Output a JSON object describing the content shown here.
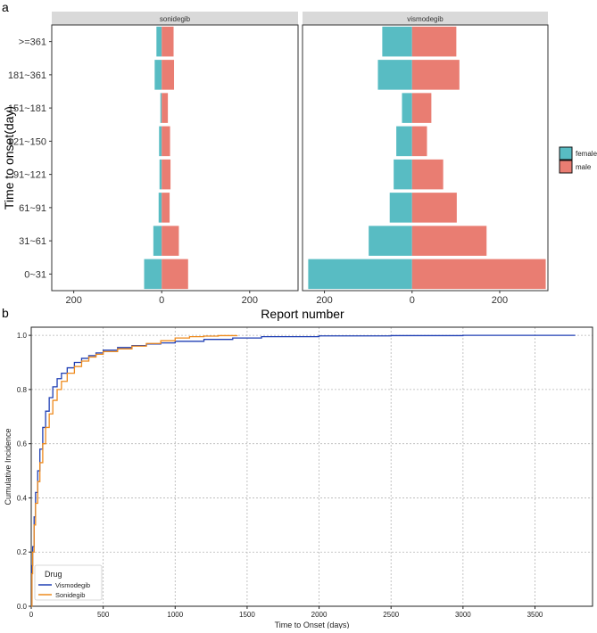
{
  "panel_labels": {
    "a": "a",
    "b": "b"
  },
  "colors": {
    "female": "#58bcc3",
    "male": "#e97d72",
    "strip_bg": "#d9d9d9",
    "vismodegib_line": "#1f3fb4",
    "sonidegib_line": "#ee8a1c",
    "grid": "#b5b5b5"
  },
  "chart_data": [
    {
      "type": "bar",
      "subtype": "population-pyramid",
      "ylabel": "Time to onset(day)",
      "xlabel": "Report number",
      "categories": [
        ">=361",
        "181~361",
        "151~181",
        "121~150",
        "91~121",
        "61~91",
        "31~61",
        "0~31"
      ],
      "xlim": [
        -250,
        310
      ],
      "xticks": [
        -200,
        0,
        200
      ],
      "xtick_labels": [
        "200",
        "0",
        "200"
      ],
      "legend": {
        "position": "right",
        "entries": [
          "female",
          "male"
        ]
      },
      "facets": [
        {
          "name": "sonidegib",
          "series": [
            {
              "name": "female",
              "values": [
                -12,
                -16,
                -3,
                -6,
                -5,
                -7,
                -19,
                -40
              ]
            },
            {
              "name": "male",
              "values": [
                27,
                28,
                14,
                19,
                20,
                18,
                39,
                60
              ]
            }
          ]
        },
        {
          "name": "vismodegib",
          "series": [
            {
              "name": "female",
              "values": [
                -68,
                -78,
                -23,
                -36,
                -42,
                -51,
                -99,
                -237
              ]
            },
            {
              "name": "male",
              "values": [
                101,
                108,
                44,
                34,
                71,
                102,
                170,
                305
              ]
            }
          ]
        }
      ]
    },
    {
      "type": "line",
      "subtype": "step",
      "xlabel": "Time to Onset (days)",
      "ylabel": "Cumulative Incidence",
      "xlim": [
        0,
        3900
      ],
      "ylim": [
        0,
        1.03
      ],
      "xticks": [
        0,
        500,
        1000,
        1500,
        2000,
        2500,
        3000,
        3500
      ],
      "yticks": [
        0.0,
        0.2,
        0.4,
        0.6,
        0.8,
        1.0
      ],
      "ytick_labels": [
        "0.0",
        "0.2",
        "0.4",
        "0.6",
        "0.8",
        "1.0"
      ],
      "grid": true,
      "legend": {
        "position": "bottom-left",
        "title": "Drug",
        "entries": [
          "Vismodegib",
          "Sonidegib"
        ]
      },
      "series": [
        {
          "name": "Vismodegib",
          "x": [
            0,
            5,
            10,
            20,
            30,
            45,
            60,
            80,
            100,
            125,
            150,
            180,
            210,
            250,
            300,
            350,
            400,
            450,
            500,
            600,
            700,
            800,
            900,
            1000,
            1200,
            1400,
            1600,
            2000,
            2500,
            3000,
            3500,
            3780
          ],
          "y": [
            0.0,
            0.15,
            0.22,
            0.33,
            0.42,
            0.5,
            0.58,
            0.66,
            0.72,
            0.77,
            0.81,
            0.84,
            0.86,
            0.88,
            0.9,
            0.915,
            0.925,
            0.935,
            0.945,
            0.955,
            0.962,
            0.968,
            0.972,
            0.978,
            0.985,
            0.99,
            0.995,
            0.998,
            0.999,
            1.0,
            1.0,
            1.0
          ]
        },
        {
          "name": "Sonidegib",
          "x": [
            0,
            5,
            10,
            20,
            30,
            45,
            60,
            80,
            100,
            125,
            150,
            180,
            210,
            250,
            300,
            350,
            400,
            450,
            500,
            600,
            700,
            800,
            900,
            1000,
            1100,
            1200,
            1300,
            1430
          ],
          "y": [
            0.0,
            0.12,
            0.2,
            0.3,
            0.38,
            0.46,
            0.53,
            0.6,
            0.66,
            0.71,
            0.76,
            0.8,
            0.83,
            0.86,
            0.885,
            0.905,
            0.92,
            0.93,
            0.94,
            0.95,
            0.96,
            0.97,
            0.98,
            0.99,
            0.995,
            0.997,
            0.999,
            1.0
          ]
        }
      ]
    }
  ]
}
